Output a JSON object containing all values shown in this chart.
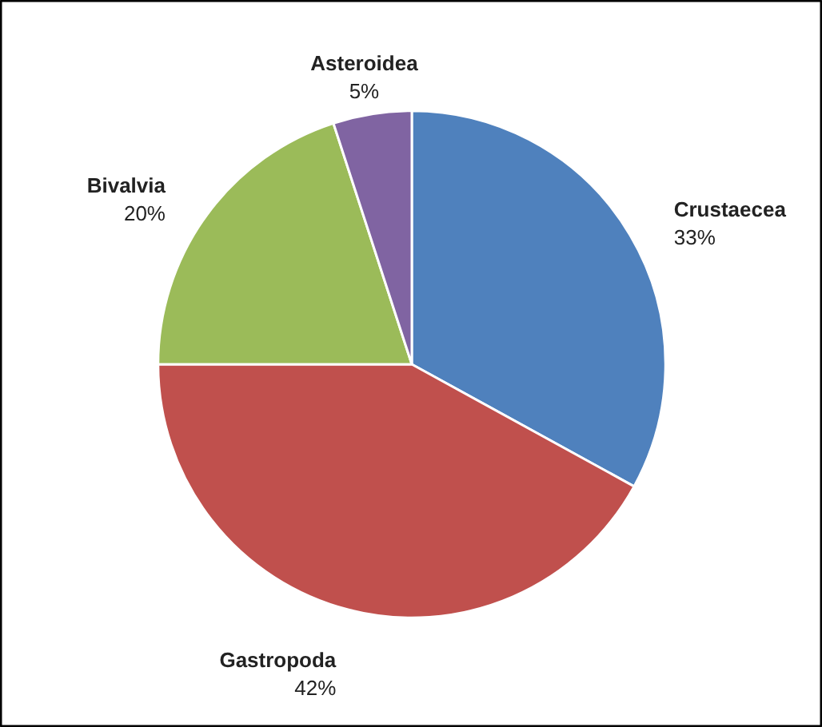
{
  "chart_data": {
    "type": "pie",
    "categories": [
      "Crustaecea",
      "Gastropoda",
      "Bivalvia",
      "Asteroidea"
    ],
    "values": [
      33,
      42,
      20,
      5
    ],
    "value_labels": [
      "33%",
      "42%",
      "20%",
      "5%"
    ],
    "colors": [
      "#4f81bd",
      "#c0504d",
      "#9bbb59",
      "#8064a2"
    ]
  }
}
